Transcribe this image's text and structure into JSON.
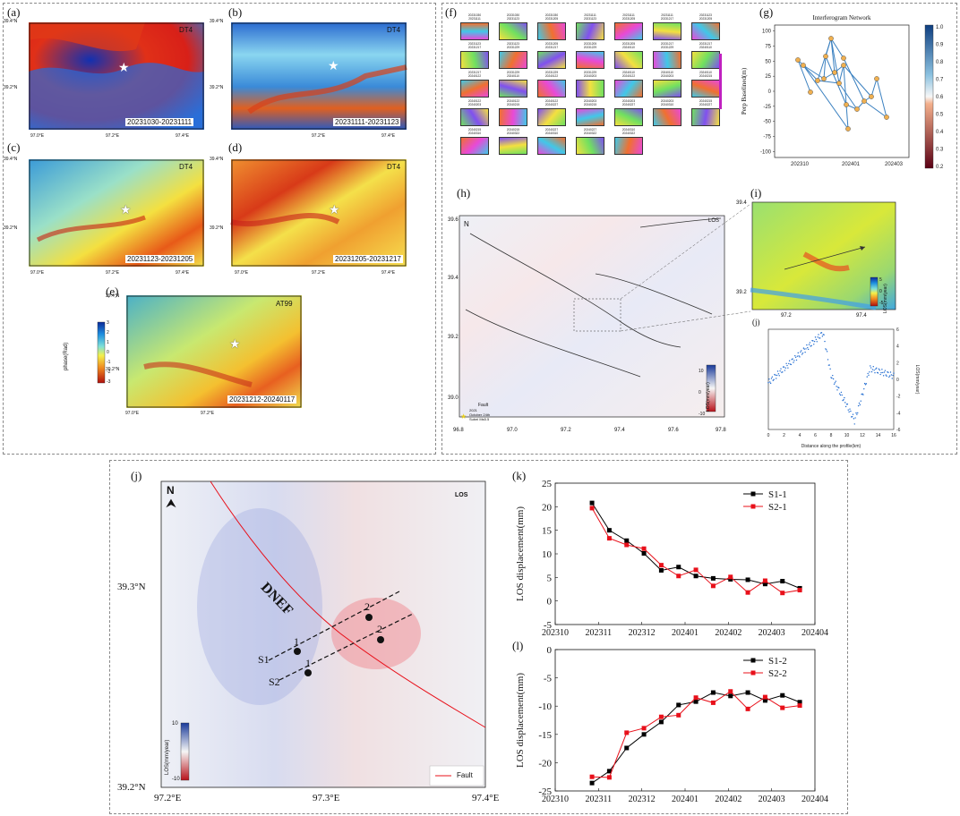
{
  "panels": {
    "a": {
      "label": "(a)",
      "sat": "DT4",
      "date": "20231030-20231111"
    },
    "b": {
      "label": "(b)",
      "sat": "DT4",
      "date": "20231111-20231123"
    },
    "c": {
      "label": "(c)",
      "sat": "DT4",
      "date": "20231123-20231205"
    },
    "d": {
      "label": "(d)",
      "sat": "DT4",
      "date": "20231205-20231217"
    },
    "e": {
      "label": "(e)",
      "sat": "AT99",
      "date": "20231212-20240117"
    },
    "f": {
      "label": "(f)"
    },
    "g": {
      "label": "(g)"
    },
    "h": {
      "label": "(h)"
    },
    "i": {
      "label": "(i)"
    },
    "j_small": {
      "label": "(j)"
    },
    "j": {
      "label": "(j)"
    },
    "k": {
      "label": "(k)"
    },
    "l": {
      "label": "(l)"
    }
  },
  "map_ticks": {
    "lat_top": "39.4°N",
    "lat_mid": "39.2°N",
    "lon1": "97.0°E",
    "lon2": "97.2°E",
    "lon3": "97.4°E"
  },
  "phase_colorbar": {
    "label": "phase(Rad)",
    "ticks": [
      "3",
      "2",
      "1",
      "0",
      "-1",
      "-2",
      "-3"
    ]
  },
  "f_thumbs": [
    "20231030\n20231111",
    "20231030\n20231123",
    "20231030\n20231205",
    "20231111\n20231123",
    "20231111\n20231205",
    "20231111\n20231217",
    "20231123\n20231205",
    "20231123\n20231217",
    "20231123\n20231229",
    "20231205\n20231217",
    "20231205\n20231229",
    "20231205\n20240110",
    "20231217\n20231229",
    "20231217\n20240110",
    "20231217\n20240122",
    "20231229\n20240110",
    "20231229\n20240122",
    "20231229\n20240203",
    "20240110\n20240122",
    "20240110\n20240203",
    "20240110\n20240215",
    "20240122\n20240203",
    "20240122\n20240215",
    "20240122\n20240227",
    "20240203\n20240215",
    "20240203\n20240227",
    "20240203\n20240310",
    "20240215\n20240227",
    "20240215\n20240310",
    "20240215\n20240322",
    "20240227\n20240310",
    "20240227\n20240322",
    "20240310\n20240322",
    "",
    ""
  ],
  "network": {
    "title": "Interferogram Network",
    "ylabel": "Perp Baselined(m)",
    "xticks": [
      "202310",
      "202401",
      "202403"
    ],
    "yticks": [
      "100",
      "75",
      "50",
      "25",
      "0",
      "-25",
      "-50",
      "-75",
      "-100"
    ],
    "cbar_ticks": [
      "1.0",
      "0.9",
      "0.8",
      "0.7",
      "0.6",
      "0.5",
      "0.4",
      "0.3",
      "0.2"
    ]
  },
  "h_map": {
    "north": "N",
    "los": "LOS",
    "yticks": [
      "39.6",
      "39.4",
      "39.2",
      "39.0"
    ],
    "xticks": [
      "96.8",
      "97.0",
      "97.2",
      "97.4",
      "97.6",
      "97.8"
    ],
    "legend_fault": "Fault",
    "legend_eq": "2021\nOctober 24th\nSubei Ms5.5",
    "cbar_label": "LOS(mm/year)",
    "cbar_ticks": [
      "10",
      "0",
      "-10"
    ]
  },
  "i_map": {
    "yticks": [
      "39.4",
      "39.2"
    ],
    "xticks": [
      "97.2",
      "97.4"
    ],
    "cbar_label": "LOS(mm/year)",
    "cbar_ticks": [
      "5",
      "0",
      "-5"
    ]
  },
  "profile": {
    "xlabel": "Distance along the profile(km)",
    "ylabel": "LOS(mm/year)",
    "xticks": [
      "0",
      "2",
      "4",
      "6",
      "8",
      "10",
      "12",
      "14",
      "16"
    ],
    "yticks": [
      "6",
      "4",
      "2",
      "0",
      "-2",
      "-4",
      "-6"
    ]
  },
  "j_map": {
    "north": "N",
    "los": "LOS",
    "fault_name": "DNEF",
    "lat_top": "39.3°N",
    "lat_bot": "39.2°N",
    "lon1": "97.2°E",
    "lon2": "97.3°E",
    "lon3": "97.4°E",
    "s1": "S1",
    "s2": "S2",
    "p1": "1",
    "p2": "2",
    "legend_fault": "Fault",
    "cbar_label": "LOS(mm/year)",
    "cbar_top": "10",
    "cbar_bot": "-10"
  },
  "chart_data": [
    {
      "type": "line",
      "title": "",
      "ylabel": "LOS displacement(mm)",
      "xlabel": "",
      "xticks": [
        "202310",
        "202311",
        "202312",
        "202401",
        "202402",
        "202403",
        "202404"
      ],
      "ylim": [
        -5,
        25
      ],
      "yticks": [
        -5,
        0,
        5,
        10,
        15,
        20,
        25
      ],
      "x": [
        0.85,
        1.25,
        1.65,
        2.05,
        2.45,
        2.85,
        3.25,
        3.65,
        4.05,
        4.45,
        4.85,
        5.25,
        5.65
      ],
      "series": [
        {
          "name": "S1-1",
          "color": "#000000",
          "values": [
            20.8,
            15.0,
            12.8,
            10.1,
            6.5,
            7.2,
            5.3,
            4.8,
            4.6,
            4.5,
            3.6,
            4.2,
            2.7
          ]
        },
        {
          "name": "S2-1",
          "color": "#e8101a",
          "values": [
            19.7,
            13.3,
            11.9,
            11.1,
            7.6,
            5.3,
            6.6,
            3.2,
            5.1,
            1.8,
            4.3,
            1.7,
            2.3
          ]
        }
      ]
    },
    {
      "type": "line",
      "title": "",
      "ylabel": "LOS displacement(mm)",
      "xlabel": "",
      "xticks": [
        "202310",
        "202311",
        "202312",
        "202401",
        "202402",
        "202403",
        "202404"
      ],
      "ylim": [
        -25,
        0
      ],
      "yticks": [
        -25,
        -20,
        -15,
        -10,
        -5,
        0
      ],
      "x": [
        0.85,
        1.25,
        1.65,
        2.05,
        2.45,
        2.85,
        3.25,
        3.65,
        4.05,
        4.45,
        4.85,
        5.25,
        5.65
      ],
      "series": [
        {
          "name": "S1-2",
          "color": "#000000",
          "values": [
            -23.6,
            -21.5,
            -17.4,
            -15.0,
            -12.8,
            -9.8,
            -9.2,
            -7.6,
            -8.2,
            -7.6,
            -9.0,
            -8.1,
            -9.3
          ]
        },
        {
          "name": "S2-2",
          "color": "#e8101a",
          "values": [
            -22.5,
            -22.6,
            -14.7,
            -13.9,
            -11.9,
            -11.6,
            -8.5,
            -9.4,
            -7.4,
            -10.5,
            -8.4,
            -10.3,
            -9.9
          ]
        }
      ]
    }
  ]
}
